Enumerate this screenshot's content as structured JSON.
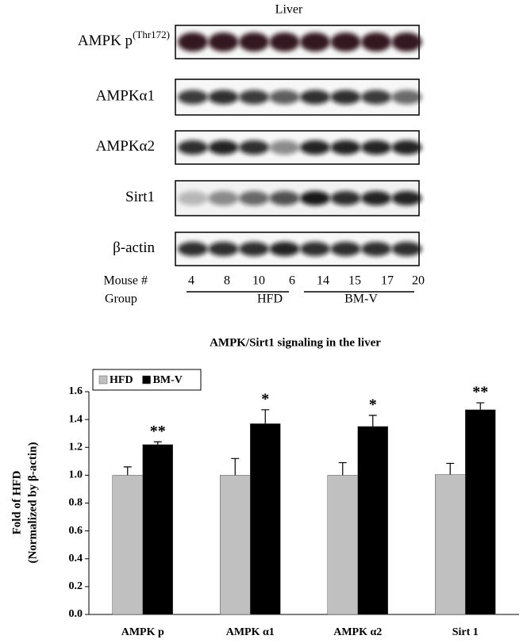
{
  "blot": {
    "title": "Liver",
    "rows": [
      {
        "label": "AMPK p",
        "sup": "(Thr172)"
      },
      {
        "label": "AMPKα1"
      },
      {
        "label": "AMPKα2"
      },
      {
        "label": "Sirt1"
      },
      {
        "label": "β-actin"
      }
    ],
    "mouse_label": "Mouse #",
    "mice": [
      "4",
      "8",
      "10",
      "6",
      "14",
      "15",
      "17",
      "20"
    ],
    "group_label": "Group",
    "groups": [
      "HFD",
      "BM-V"
    ]
  },
  "chart_data": {
    "type": "bar",
    "title": "AMPK/Sirt1 signaling in the liver",
    "ylabel": [
      "Fold of HFD",
      "(Normalized by β-actin)"
    ],
    "categories": [
      "AMPK p",
      "AMPK α1",
      "AMPK α2",
      "Sirt 1"
    ],
    "series": [
      {
        "name": "HFD",
        "color": "#c0c0c0",
        "values": [
          1.0,
          1.0,
          1.0,
          1.005
        ],
        "errors": [
          0.06,
          0.12,
          0.09,
          0.08
        ]
      },
      {
        "name": "BM-V",
        "color": "#000000",
        "values": [
          1.22,
          1.37,
          1.35,
          1.47
        ],
        "errors": [
          0.02,
          0.1,
          0.08,
          0.05
        ],
        "significance": [
          "**",
          "*",
          "*",
          "**"
        ]
      }
    ],
    "ylim": [
      0,
      1.6
    ],
    "yticks": [
      {
        "value": 0,
        "label": "0.0"
      },
      0.2,
      0.4,
      0.6,
      0.8,
      {
        "value": 1,
        "label": "1.0"
      },
      1.2,
      1.4,
      1.6
    ],
    "legend": "top-left",
    "grid": false
  }
}
